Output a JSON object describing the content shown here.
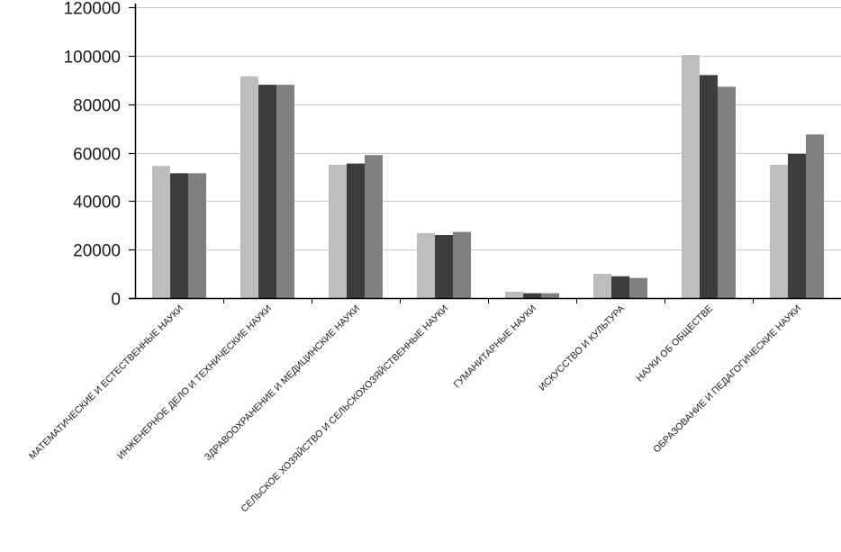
{
  "chart_data": {
    "type": "bar",
    "title": "",
    "xlabel": "",
    "ylabel": "",
    "ylim": [
      0,
      120000
    ],
    "yticks": [
      0,
      20000,
      40000,
      60000,
      80000,
      100000,
      120000
    ],
    "grid": true,
    "legend": "none",
    "categories": [
      "МАТЕМАТИЧЕСКИЕ И ЕСТЕСТВЕННЫЕ НАУКИ",
      "ИНЖЕНЕРНОЕ ДЕЛО И ТЕХНИЧЕСКИЕ НАУКИ",
      "ЗДРАВООХРАНЕНИЕ И МЕДИЦИНСКИЕ НАУКИ",
      "СЕЛЬСКОЕ ХОЗЯЙСТВО И СЕЛЬСКОХОЗЯЙСТВЕННЫЕ НАУКИ",
      "ГУМАНИТАРНЫЕ НАУКИ",
      "ИСКУССТВО И КУЛЬТУРА",
      "НАУКИ ОБ ОБЩЕСТВЕ",
      "ОБРАЗОВАНИЕ И ПЕДАГОГИЧЕСКИЕ НАУКИ"
    ],
    "series": [
      {
        "color": "#bdbdbd",
        "values": [
          54500,
          91500,
          55000,
          26800,
          2600,
          10000,
          100300,
          55000
        ]
      },
      {
        "color": "#3c3c3c",
        "values": [
          51500,
          88000,
          55500,
          26000,
          2000,
          9000,
          92000,
          59500
        ]
      },
      {
        "color": "#808080",
        "values": [
          51500,
          88000,
          59000,
          27300,
          2000,
          8300,
          87200,
          67500
        ]
      }
    ]
  }
}
